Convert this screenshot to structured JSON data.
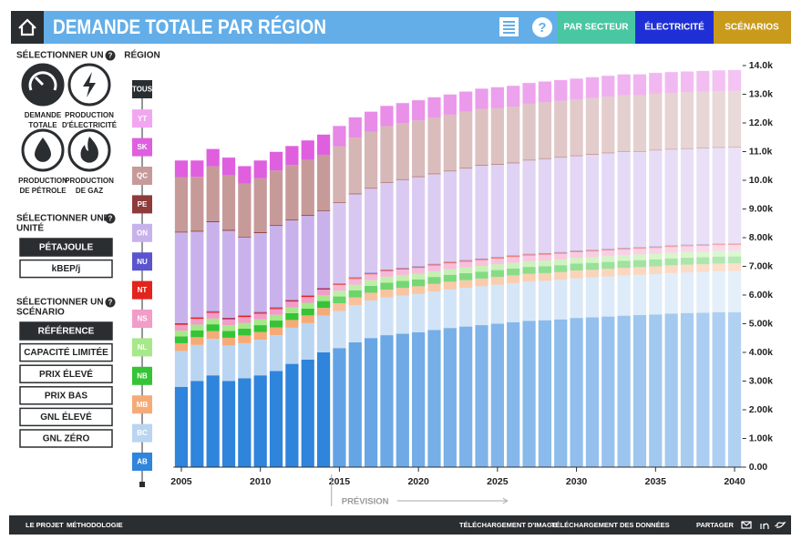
{
  "help_icon": "?",
  "header": {
    "title": "DEMANDE TOTALE PAR RÉGION",
    "nav": [
      "PAR SECTEUR",
      "ÉLECTRICITÉ",
      "SCÉNARIOS"
    ]
  },
  "sidebar": {
    "measure": {
      "title": [
        "SÉLECTIONNER UN"
      ],
      "options": [
        [
          "DEMANDE",
          "TOTALE"
        ],
        [
          "PRODUCTION",
          "D'ÉLECTRICITÉ"
        ],
        [
          "PRODUCTION",
          "DE PÉTROLE"
        ],
        [
          "PRODUCTION",
          "DE GAZ"
        ]
      ]
    },
    "unit": {
      "title": [
        "SÉLECTIONNER UNE",
        "UNITÉ"
      ],
      "options": [
        "PÉTAJOULE",
        "kBEP/j"
      ]
    },
    "scenario": {
      "title": [
        "SÉLECTIONNER UN",
        "SCÉNARIO"
      ],
      "options": [
        "RÉFÉRENCE",
        "CAPACITÉ LIMITÉE",
        "PRIX ÉLEVÉ",
        "PRIX BAS",
        "GNL ÉLEVÉ",
        "GNL ZÉRO"
      ]
    }
  },
  "region_selector": {
    "title": "RÉGION",
    "all": "TOUS"
  },
  "footer": {
    "left": [
      "LE PROJET",
      "MÉTHODOLOGIE"
    ],
    "right": [
      "TÉLÉCHARGEMENT D'IMAGE",
      "TÉLÉCHARGEMENT DES DONNÉES",
      "PARTAGER"
    ]
  },
  "chart_data": {
    "type": "bar",
    "stacked": true,
    "forecast_label": "PRÉVISION",
    "forecast_from": 2015,
    "x": [
      2005,
      2006,
      2007,
      2008,
      2009,
      2010,
      2011,
      2012,
      2013,
      2014,
      2015,
      2016,
      2017,
      2018,
      2019,
      2020,
      2021,
      2022,
      2023,
      2024,
      2025,
      2026,
      2027,
      2028,
      2029,
      2030,
      2031,
      2032,
      2033,
      2034,
      2035,
      2036,
      2037,
      2038,
      2039,
      2040
    ],
    "xlim": [
      2004.5,
      2040.5
    ],
    "xticks": [
      2005,
      2010,
      2015,
      2020,
      2025,
      2030,
      2035,
      2040
    ],
    "ylim": [
      0,
      14000
    ],
    "yticks": [
      {
        "value": 0,
        "label": "0.00"
      },
      {
        "value": 1000,
        "label": "1.00k"
      },
      {
        "value": 2000,
        "label": "2.00k"
      },
      {
        "value": 3000,
        "label": "3.00k"
      },
      {
        "value": 4000,
        "label": "4.00k"
      },
      {
        "value": 5000,
        "label": "5.00k"
      },
      {
        "value": 6000,
        "label": "6.00k"
      },
      {
        "value": 7000,
        "label": "7.00k"
      },
      {
        "value": 8000,
        "label": "8.00k"
      },
      {
        "value": 9000,
        "label": "9.00k"
      },
      {
        "value": 10000,
        "label": "10.0k"
      },
      {
        "value": 11000,
        "label": "11.0k"
      },
      {
        "value": 12000,
        "label": "12.0k"
      },
      {
        "value": 13000,
        "label": "13.0k"
      },
      {
        "value": 14000,
        "label": "14.0k"
      }
    ],
    "series": [
      {
        "name": "AB",
        "color": "#2f84dc",
        "values": [
          2800,
          3000,
          3200,
          3000,
          3100,
          3200,
          3350,
          3600,
          3750,
          4000,
          4150,
          4350,
          4500,
          4600,
          4650,
          4700,
          4780,
          4850,
          4900,
          4950,
          5000,
          5050,
          5100,
          5120,
          5150,
          5200,
          5220,
          5250,
          5280,
          5300,
          5320,
          5350,
          5370,
          5380,
          5400,
          5400
        ]
      },
      {
        "name": "BC",
        "color": "#b9d5f2",
        "values": [
          1250,
          1260,
          1270,
          1240,
          1220,
          1240,
          1250,
          1260,
          1270,
          1280,
          1290,
          1300,
          1310,
          1320,
          1330,
          1335,
          1340,
          1345,
          1350,
          1355,
          1360,
          1365,
          1370,
          1375,
          1380,
          1385,
          1390,
          1395,
          1400,
          1405,
          1410,
          1415,
          1420,
          1425,
          1430,
          1435
        ]
      },
      {
        "name": "MB",
        "color": "#f5ab78",
        "values": [
          270,
          270,
          270,
          270,
          270,
          270,
          270,
          270,
          270,
          270,
          270,
          270,
          270,
          270,
          270,
          270,
          270,
          270,
          270,
          270,
          270,
          270,
          270,
          270,
          270,
          270,
          270,
          270,
          270,
          270,
          270,
          270,
          270,
          270,
          270,
          270
        ]
      },
      {
        "name": "NB",
        "color": "#35c435",
        "values": [
          240,
          240,
          240,
          240,
          240,
          240,
          240,
          240,
          240,
          240,
          240,
          240,
          240,
          240,
          240,
          240,
          240,
          240,
          240,
          240,
          240,
          240,
          240,
          240,
          240,
          240,
          240,
          240,
          240,
          240,
          240,
          240,
          240,
          240,
          240,
          240
        ]
      },
      {
        "name": "NL",
        "color": "#a6e88a",
        "values": [
          200,
          200,
          200,
          200,
          200,
          200,
          200,
          200,
          200,
          200,
          200,
          200,
          200,
          200,
          200,
          200,
          200,
          200,
          200,
          200,
          200,
          200,
          200,
          200,
          200,
          200,
          200,
          200,
          200,
          200,
          200,
          200,
          200,
          200,
          200,
          200
        ]
      },
      {
        "name": "NS",
        "color": "#f29cc8",
        "values": [
          200,
          200,
          200,
          200,
          200,
          200,
          200,
          200,
          200,
          200,
          200,
          200,
          200,
          200,
          200,
          200,
          200,
          200,
          200,
          200,
          200,
          200,
          200,
          200,
          200,
          200,
          200,
          200,
          200,
          200,
          200,
          200,
          200,
          200,
          200,
          200
        ]
      },
      {
        "name": "NT",
        "color": "#e3231d",
        "values": [
          40,
          40,
          40,
          40,
          40,
          40,
          40,
          40,
          40,
          40,
          40,
          40,
          40,
          40,
          40,
          40,
          40,
          40,
          40,
          40,
          40,
          40,
          40,
          40,
          40,
          40,
          40,
          40,
          40,
          40,
          40,
          40,
          40,
          40,
          40,
          40
        ]
      },
      {
        "name": "NU",
        "color": "#5a55cf",
        "values": [
          20,
          20,
          20,
          20,
          20,
          20,
          20,
          20,
          20,
          20,
          20,
          20,
          20,
          20,
          20,
          20,
          20,
          20,
          20,
          20,
          20,
          20,
          20,
          20,
          20,
          20,
          20,
          20,
          20,
          20,
          20,
          20,
          20,
          20,
          20,
          20
        ]
      },
      {
        "name": "ON",
        "color": "#c9b2ec",
        "values": [
          3160,
          2980,
          3100,
          3030,
          2720,
          2750,
          2840,
          2770,
          2770,
          2680,
          2800,
          2890,
          2930,
          3020,
          3060,
          3105,
          3120,
          3145,
          3190,
          3235,
          3210,
          3205,
          3250,
          3275,
          3290,
          3285,
          3310,
          3325,
          3340,
          3315,
          3340,
          3335,
          3330,
          3335,
          3330,
          3335
        ]
      },
      {
        "name": "PE",
        "color": "#8e3b3b",
        "values": [
          30,
          30,
          30,
          30,
          30,
          30,
          30,
          30,
          30,
          30,
          30,
          30,
          30,
          30,
          30,
          30,
          30,
          30,
          30,
          30,
          30,
          30,
          30,
          30,
          30,
          30,
          30,
          30,
          30,
          30,
          30,
          30,
          30,
          30,
          30,
          30
        ]
      },
      {
        "name": "QC",
        "color": "#c79a9a",
        "values": [
          1900,
          1880,
          1920,
          1900,
          1850,
          1880,
          1900,
          1900,
          1920,
          1930,
          1950,
          1950,
          1950,
          1950,
          1950,
          1950,
          1950,
          1950,
          1950,
          1950,
          1950,
          1950,
          1950,
          1950,
          1950,
          1950,
          1950,
          1950,
          1950,
          1950,
          1950,
          1950,
          1950,
          1950,
          1950,
          1950
        ]
      },
      {
        "name": "SK",
        "color": "#df5fdf",
        "values": [
          580,
          570,
          600,
          620,
          600,
          620,
          650,
          660,
          680,
          700,
          700,
          700,
          700,
          700,
          700,
          700,
          700,
          700,
          700,
          700,
          720,
          720,
          720,
          720,
          720,
          720,
          720,
          720,
          720,
          720,
          720,
          720,
          720,
          720,
          720,
          720
        ]
      },
      {
        "name": "YT",
        "color": "#f2a6f2",
        "values": [
          10,
          10,
          10,
          10,
          10,
          10,
          10,
          10,
          10,
          10,
          10,
          10,
          10,
          10,
          10,
          10,
          10,
          10,
          10,
          10,
          10,
          10,
          10,
          10,
          10,
          10,
          10,
          10,
          10,
          10,
          10,
          10,
          10,
          10,
          10,
          10
        ]
      }
    ]
  }
}
